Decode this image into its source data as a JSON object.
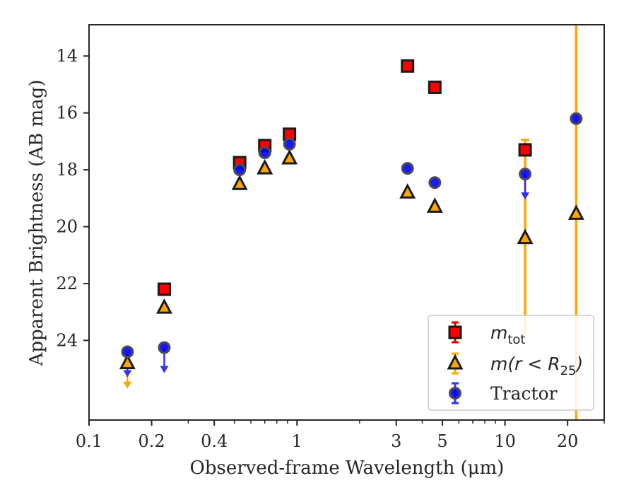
{
  "chart_data": {
    "type": "scatter",
    "xlabel": "Observed-frame Wavelength (μm)",
    "ylabel": "Apparent Brightness (AB mag)",
    "xscale": "log",
    "xlim": [
      0.1,
      30
    ],
    "ylim": [
      26.8,
      12.9
    ],
    "y_inverted": true,
    "xticks": [
      0.1,
      0.2,
      0.4,
      1,
      3,
      5,
      10,
      20
    ],
    "xtick_labels": [
      "0.1",
      "0.2",
      "0.4",
      "1",
      "3",
      "5",
      "10",
      "20"
    ],
    "yticks": [
      14,
      16,
      18,
      20,
      22,
      24
    ],
    "ytick_labels": [
      "14",
      "16",
      "18",
      "20",
      "22",
      "24"
    ],
    "legend_position": "bottom-right",
    "series": [
      {
        "name": "m_tot",
        "legend_main": "m",
        "legend_sub": "tot",
        "marker": "square",
        "color": "#ff0000",
        "errcolor": "#e00000",
        "points": [
          {
            "x": 0.23,
            "y": 22.2
          },
          {
            "x": 0.53,
            "y": 17.75
          },
          {
            "x": 0.7,
            "y": 17.15
          },
          {
            "x": 0.92,
            "y": 16.75
          },
          {
            "x": 3.4,
            "y": 14.35
          },
          {
            "x": 4.6,
            "y": 15.1
          },
          {
            "x": 12.5,
            "y": 17.3
          }
        ]
      },
      {
        "name": "m(r < R_25)",
        "legend_main": "m(r < R",
        "legend_sub": "25",
        "legend_end": ")",
        "marker": "triangle",
        "color": "#ffa500",
        "errcolor": "#ffa500",
        "points": [
          {
            "x": 0.153,
            "y": 24.8,
            "upper_limit": true
          },
          {
            "x": 0.23,
            "y": 22.85
          },
          {
            "x": 0.53,
            "y": 18.5
          },
          {
            "x": 0.7,
            "y": 17.95
          },
          {
            "x": 0.92,
            "y": 17.6
          },
          {
            "x": 3.4,
            "y": 18.8
          },
          {
            "x": 4.6,
            "y": 19.3
          },
          {
            "x": 12.5,
            "y": 20.4,
            "err_low": 16.95,
            "err_high": 23.9
          },
          {
            "x": 22,
            "y": 19.55,
            "err_low": 12.9,
            "err_high": 26.8
          }
        ]
      },
      {
        "name": "Tractor",
        "legend_main": "Tractor",
        "marker": "circle",
        "color": "#0000ff",
        "errcolor": "#3333ee",
        "points": [
          {
            "x": 0.153,
            "y": 24.4,
            "upper_limit": true
          },
          {
            "x": 0.23,
            "y": 24.25,
            "upper_limit": true
          },
          {
            "x": 0.53,
            "y": 18.0
          },
          {
            "x": 0.7,
            "y": 17.4
          },
          {
            "x": 0.92,
            "y": 17.1
          },
          {
            "x": 3.4,
            "y": 17.95
          },
          {
            "x": 4.6,
            "y": 18.45
          },
          {
            "x": 12.5,
            "y": 18.15,
            "upper_limit": true
          },
          {
            "x": 22,
            "y": 16.2
          }
        ]
      }
    ]
  }
}
